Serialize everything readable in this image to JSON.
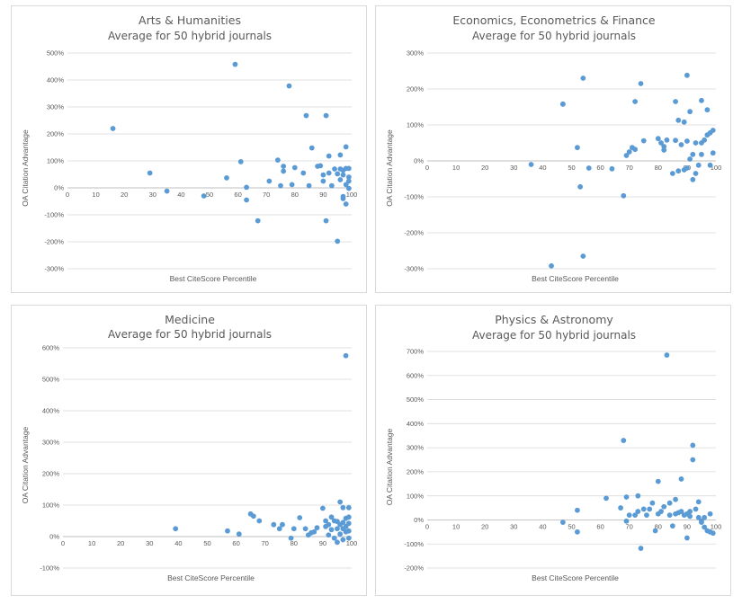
{
  "chart_data": [
    {
      "type": "scatter",
      "title": "Arts & Humanities",
      "subtitle": "Average for 50 hybrid journals",
      "xlabel": "Best CiteScore Percentile",
      "ylabel": "OA Citation Advantage",
      "xlim": [
        0,
        100
      ],
      "xticks": [
        0,
        10,
        20,
        30,
        40,
        50,
        60,
        70,
        80,
        90,
        100
      ],
      "ylim": [
        -300,
        500
      ],
      "yticks": [
        -300,
        -200,
        -100,
        0,
        100,
        200,
        300,
        400,
        500
      ],
      "ytick_labels": [
        "-300%",
        "-200%",
        "-100%",
        "0%",
        "100%",
        "200%",
        "300%",
        "400%",
        "500%"
      ],
      "grid": "horizontal",
      "points": [
        [
          16,
          220
        ],
        [
          29,
          55
        ],
        [
          35,
          -12
        ],
        [
          48,
          -30
        ],
        [
          56,
          37
        ],
        [
          59,
          458
        ],
        [
          61,
          97
        ],
        [
          63,
          -45
        ],
        [
          63,
          2
        ],
        [
          67,
          -122
        ],
        [
          71,
          25
        ],
        [
          74,
          103
        ],
        [
          75,
          8
        ],
        [
          76,
          80
        ],
        [
          76,
          62
        ],
        [
          78,
          378
        ],
        [
          79,
          12
        ],
        [
          80,
          75
        ],
        [
          83,
          55
        ],
        [
          84,
          268
        ],
        [
          85,
          8
        ],
        [
          86,
          148
        ],
        [
          88,
          80
        ],
        [
          89,
          82
        ],
        [
          90,
          48
        ],
        [
          90,
          25
        ],
        [
          91,
          268
        ],
        [
          91,
          -122
        ],
        [
          92,
          118
        ],
        [
          92,
          55
        ],
        [
          93,
          8
        ],
        [
          94,
          70
        ],
        [
          95,
          52
        ],
        [
          95,
          -198
        ],
        [
          96,
          30
        ],
        [
          96,
          122
        ],
        [
          96,
          70
        ],
        [
          97,
          -32
        ],
        [
          97,
          -40
        ],
        [
          97,
          48
        ],
        [
          97,
          65
        ],
        [
          98,
          72
        ],
        [
          98,
          12
        ],
        [
          98,
          -60
        ],
        [
          98,
          152
        ],
        [
          99,
          72
        ],
        [
          99,
          40
        ],
        [
          99,
          25
        ],
        [
          99,
          -2
        ]
      ]
    },
    {
      "type": "scatter",
      "title": "Economics, Econometrics & Finance",
      "subtitle": "Average for 50 hybrid journals",
      "xlabel": "Best CiteScore Percentile",
      "ylabel": "OA Citation Advantage",
      "xlim": [
        0,
        100
      ],
      "xticks": [
        0,
        10,
        20,
        30,
        40,
        50,
        60,
        70,
        80,
        90,
        100
      ],
      "ylim": [
        -300,
        300
      ],
      "yticks": [
        -300,
        -200,
        -100,
        0,
        100,
        200,
        300
      ],
      "ytick_labels": [
        "-300%",
        "-200%",
        "-100%",
        "0%",
        "100%",
        "200%",
        "300%"
      ],
      "grid": "horizontal",
      "points": [
        [
          36,
          -10
        ],
        [
          43,
          -292
        ],
        [
          47,
          158
        ],
        [
          47,
          158
        ],
        [
          52,
          37
        ],
        [
          53,
          -72
        ],
        [
          54,
          230
        ],
        [
          54,
          -265
        ],
        [
          56,
          -20
        ],
        [
          64,
          -22
        ],
        [
          68,
          -97
        ],
        [
          69,
          15
        ],
        [
          70,
          25
        ],
        [
          71,
          37
        ],
        [
          72,
          32
        ],
        [
          72,
          165
        ],
        [
          74,
          215
        ],
        [
          75,
          56
        ],
        [
          80,
          62
        ],
        [
          81,
          50
        ],
        [
          82,
          40
        ],
        [
          82,
          30
        ],
        [
          83,
          58
        ],
        [
          85,
          -35
        ],
        [
          86,
          57
        ],
        [
          86,
          165
        ],
        [
          87,
          113
        ],
        [
          87,
          -28
        ],
        [
          88,
          45
        ],
        [
          89,
          108
        ],
        [
          89,
          -25
        ],
        [
          90,
          238
        ],
        [
          90,
          55
        ],
        [
          90,
          -20
        ],
        [
          91,
          5
        ],
        [
          91,
          137
        ],
        [
          92,
          18
        ],
        [
          92,
          -52
        ],
        [
          93,
          -35
        ],
        [
          93,
          50
        ],
        [
          94,
          -12
        ],
        [
          95,
          50
        ],
        [
          95,
          168
        ],
        [
          95,
          18
        ],
        [
          96,
          58
        ],
        [
          97,
          72
        ],
        [
          97,
          142
        ],
        [
          98,
          78
        ],
        [
          98,
          -12
        ],
        [
          99,
          22
        ],
        [
          99,
          85
        ]
      ]
    },
    {
      "type": "scatter",
      "title": "Medicine",
      "subtitle": "Average for 50 hybrid journals",
      "xlabel": "Best CiteScore Percentile",
      "ylabel": "OA Citation Advantage",
      "xlim": [
        0,
        100
      ],
      "xticks": [
        0,
        10,
        20,
        30,
        40,
        50,
        60,
        70,
        80,
        90,
        100
      ],
      "ylim": [
        -100,
        600
      ],
      "yticks": [
        -100,
        0,
        100,
        200,
        300,
        400,
        500,
        600
      ],
      "ytick_labels": [
        "-100%",
        "0%",
        "100%",
        "200%",
        "300%",
        "400%",
        "500%",
        "600%"
      ],
      "grid": "horizontal",
      "points": [
        [
          39,
          25
        ],
        [
          57,
          18
        ],
        [
          61,
          8
        ],
        [
          65,
          72
        ],
        [
          66,
          65
        ],
        [
          68,
          50
        ],
        [
          73,
          38
        ],
        [
          75,
          25
        ],
        [
          76,
          38
        ],
        [
          79,
          -5
        ],
        [
          80,
          25
        ],
        [
          82,
          60
        ],
        [
          84,
          25
        ],
        [
          85,
          5
        ],
        [
          86,
          12
        ],
        [
          87,
          15
        ],
        [
          88,
          28
        ],
        [
          90,
          90
        ],
        [
          91,
          50
        ],
        [
          91,
          32
        ],
        [
          92,
          38
        ],
        [
          92,
          5
        ],
        [
          93,
          62
        ],
        [
          93,
          22
        ],
        [
          94,
          -5
        ],
        [
          94,
          50
        ],
        [
          95,
          25
        ],
        [
          95,
          -18
        ],
        [
          95,
          48
        ],
        [
          96,
          110
        ],
        [
          96,
          38
        ],
        [
          96,
          8
        ],
        [
          97,
          -10
        ],
        [
          97,
          92
        ],
        [
          97,
          25
        ],
        [
          97,
          45
        ],
        [
          98,
          575
        ],
        [
          98,
          58
        ],
        [
          98,
          15
        ],
        [
          98,
          32
        ],
        [
          99,
          92
        ],
        [
          99,
          62
        ],
        [
          99,
          42
        ],
        [
          99,
          18
        ],
        [
          99,
          -5
        ]
      ]
    },
    {
      "type": "scatter",
      "title": "Physics & Astronomy",
      "subtitle": "Average for 50 hybrid journals",
      "xlabel": "Best CiteScore Percentile",
      "ylabel": "OA Citation Advantage",
      "xlim": [
        0,
        100
      ],
      "xticks": [
        0,
        10,
        20,
        30,
        40,
        50,
        60,
        70,
        80,
        90,
        100
      ],
      "ylim": [
        -200,
        700
      ],
      "yticks": [
        -200,
        -100,
        0,
        100,
        200,
        300,
        400,
        500,
        600,
        700
      ],
      "ytick_labels": [
        "-200%",
        "-100%",
        "0%",
        "100%",
        "200%",
        "300%",
        "400%",
        "500%",
        "600%",
        "700%"
      ],
      "grid": "horizontal",
      "points": [
        [
          47,
          -10
        ],
        [
          52,
          40
        ],
        [
          52,
          -50
        ],
        [
          62,
          90
        ],
        [
          67,
          50
        ],
        [
          68,
          330
        ],
        [
          69,
          -5
        ],
        [
          69,
          95
        ],
        [
          70,
          20
        ],
        [
          72,
          20
        ],
        [
          73,
          100
        ],
        [
          73,
          35
        ],
        [
          74,
          -118
        ],
        [
          75,
          45
        ],
        [
          76,
          20
        ],
        [
          77,
          45
        ],
        [
          78,
          70
        ],
        [
          79,
          -45
        ],
        [
          80,
          160
        ],
        [
          80,
          25
        ],
        [
          81,
          35
        ],
        [
          82,
          55
        ],
        [
          83,
          685
        ],
        [
          84,
          70
        ],
        [
          84,
          20
        ],
        [
          85,
          -25
        ],
        [
          86,
          85
        ],
        [
          86,
          25
        ],
        [
          87,
          30
        ],
        [
          88,
          170
        ],
        [
          88,
          35
        ],
        [
          89,
          20
        ],
        [
          90,
          -75
        ],
        [
          90,
          25
        ],
        [
          91,
          35
        ],
        [
          91,
          15
        ],
        [
          92,
          310
        ],
        [
          92,
          250
        ],
        [
          93,
          45
        ],
        [
          94,
          10
        ],
        [
          94,
          75
        ],
        [
          95,
          -10
        ],
        [
          95,
          -5
        ],
        [
          96,
          -30
        ],
        [
          96,
          10
        ],
        [
          97,
          -45
        ],
        [
          98,
          -50
        ],
        [
          98,
          25
        ],
        [
          99,
          -55
        ]
      ]
    }
  ]
}
